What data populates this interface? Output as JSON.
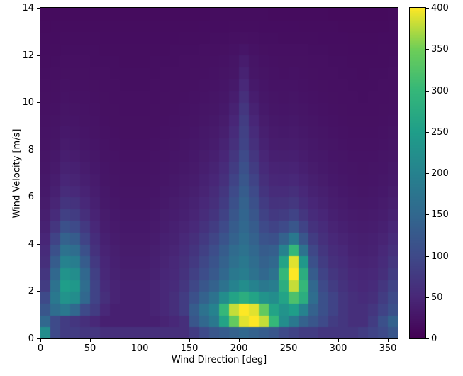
{
  "figure": {
    "background": "#ffffff",
    "plot_background": "#440154"
  },
  "chart_data": {
    "type": "heatmap",
    "title": "",
    "xlabel": "Wind Direction [deg]",
    "ylabel": "Wind Velocity [m/s]",
    "x_range": [
      0,
      360
    ],
    "y_range": [
      0,
      14
    ],
    "x_bin_size_deg": 10,
    "y_bin_size_ms": 0.5,
    "colormap": "viridis",
    "vmin": 0,
    "vmax": 400,
    "x_ticks": [
      0,
      50,
      100,
      150,
      200,
      250,
      300,
      350
    ],
    "y_ticks": [
      0,
      2,
      4,
      6,
      8,
      10,
      12,
      14
    ],
    "colorbar_ticks": [
      0,
      50,
      100,
      150,
      200,
      250,
      300,
      350,
      400
    ],
    "legend_position": "right-colorbar",
    "grid": false,
    "rows_order": "bottom-to-top",
    "viridis_stops": [
      [
        0.0,
        [
          68,
          1,
          84
        ]
      ],
      [
        0.125,
        [
          72,
          40,
          120
        ]
      ],
      [
        0.25,
        [
          62,
          74,
          137
        ]
      ],
      [
        0.375,
        [
          49,
          104,
          142
        ]
      ],
      [
        0.5,
        [
          38,
          130,
          142
        ]
      ],
      [
        0.625,
        [
          31,
          158,
          137
        ]
      ],
      [
        0.75,
        [
          53,
          183,
          121
        ]
      ],
      [
        0.875,
        [
          110,
          206,
          88
        ]
      ],
      [
        1.0,
        [
          253,
          231,
          37
        ]
      ]
    ],
    "values": [
      [
        220,
        100,
        80,
        80,
        70,
        70,
        60,
        60,
        60,
        60,
        60,
        60,
        60,
        60,
        60,
        80,
        100,
        120,
        130,
        140,
        150,
        140,
        130,
        120,
        100,
        90,
        80,
        80,
        70,
        70,
        70,
        70,
        80,
        90,
        100,
        120
      ],
      [
        150,
        100,
        80,
        70,
        60,
        50,
        40,
        40,
        40,
        40,
        40,
        40,
        45,
        50,
        60,
        120,
        150,
        180,
        260,
        340,
        390,
        400,
        380,
        300,
        220,
        180,
        140,
        120,
        100,
        80,
        70,
        60,
        60,
        80,
        110,
        140
      ],
      [
        120,
        160,
        180,
        150,
        100,
        80,
        50,
        40,
        40,
        40,
        40,
        45,
        50,
        60,
        80,
        130,
        170,
        200,
        300,
        380,
        400,
        390,
        340,
        260,
        230,
        250,
        200,
        140,
        110,
        90,
        70,
        60,
        60,
        70,
        90,
        110
      ],
      [
        100,
        180,
        230,
        220,
        150,
        90,
        60,
        45,
        40,
        40,
        40,
        45,
        50,
        60,
        80,
        110,
        140,
        170,
        220,
        260,
        280,
        260,
        230,
        220,
        260,
        320,
        280,
        160,
        110,
        90,
        70,
        60,
        55,
        60,
        80,
        100
      ],
      [
        80,
        170,
        250,
        240,
        160,
        90,
        55,
        45,
        40,
        40,
        40,
        45,
        50,
        55,
        70,
        95,
        120,
        140,
        170,
        200,
        220,
        200,
        180,
        190,
        280,
        380,
        300,
        150,
        100,
        80,
        65,
        55,
        50,
        55,
        70,
        90
      ],
      [
        70,
        150,
        230,
        220,
        150,
        85,
        50,
        42,
        38,
        38,
        38,
        42,
        48,
        52,
        65,
        85,
        105,
        125,
        150,
        180,
        190,
        170,
        150,
        170,
        300,
        400,
        280,
        130,
        90,
        70,
        60,
        50,
        48,
        50,
        60,
        80
      ],
      [
        60,
        130,
        200,
        190,
        130,
        75,
        48,
        40,
        36,
        36,
        36,
        40,
        45,
        50,
        60,
        75,
        95,
        115,
        140,
        165,
        180,
        160,
        140,
        150,
        260,
        390,
        240,
        110,
        80,
        62,
        55,
        46,
        44,
        46,
        55,
        70
      ],
      [
        55,
        110,
        170,
        160,
        110,
        65,
        44,
        38,
        34,
        34,
        34,
        38,
        42,
        46,
        55,
        68,
        85,
        105,
        130,
        155,
        170,
        150,
        130,
        135,
        200,
        300,
        170,
        95,
        70,
        56,
        50,
        42,
        40,
        42,
        50,
        62
      ],
      [
        48,
        90,
        140,
        130,
        90,
        58,
        40,
        35,
        32,
        32,
        32,
        35,
        40,
        42,
        50,
        60,
        75,
        92,
        115,
        140,
        160,
        140,
        115,
        110,
        140,
        180,
        120,
        80,
        62,
        50,
        45,
        40,
        38,
        40,
        45,
        55
      ],
      [
        42,
        70,
        110,
        100,
        75,
        50,
        36,
        32,
        30,
        30,
        30,
        32,
        36,
        40,
        45,
        52,
        65,
        80,
        100,
        130,
        150,
        130,
        100,
        90,
        100,
        120,
        90,
        65,
        55,
        45,
        40,
        36,
        35,
        36,
        40,
        48
      ],
      [
        38,
        55,
        85,
        80,
        60,
        44,
        34,
        30,
        28,
        28,
        28,
        30,
        34,
        36,
        40,
        46,
        56,
        68,
        88,
        120,
        145,
        120,
        88,
        75,
        80,
        90,
        70,
        55,
        48,
        40,
        36,
        33,
        32,
        33,
        36,
        42
      ],
      [
        34,
        46,
        68,
        64,
        50,
        40,
        31,
        28,
        26,
        26,
        26,
        28,
        31,
        34,
        37,
        42,
        50,
        60,
        78,
        110,
        140,
        110,
        78,
        64,
        66,
        72,
        58,
        48,
        42,
        36,
        33,
        30,
        29,
        30,
        33,
        38
      ],
      [
        31,
        40,
        56,
        52,
        44,
        36,
        29,
        26,
        25,
        25,
        25,
        26,
        29,
        31,
        34,
        38,
        45,
        54,
        70,
        100,
        130,
        100,
        68,
        56,
        56,
        60,
        50,
        42,
        38,
        33,
        30,
        28,
        27,
        28,
        30,
        34
      ],
      [
        29,
        36,
        48,
        45,
        39,
        33,
        27,
        25,
        24,
        24,
        24,
        25,
        27,
        29,
        32,
        35,
        41,
        48,
        62,
        90,
        120,
        90,
        60,
        49,
        48,
        50,
        44,
        38,
        34,
        30,
        28,
        26,
        25,
        26,
        28,
        31
      ],
      [
        27,
        32,
        42,
        40,
        35,
        30,
        26,
        24,
        23,
        23,
        23,
        24,
        26,
        27,
        29,
        32,
        37,
        43,
        55,
        80,
        110,
        80,
        53,
        44,
        43,
        44,
        39,
        34,
        31,
        28,
        26,
        25,
        24,
        25,
        26,
        29
      ],
      [
        25,
        29,
        37,
        35,
        31,
        28,
        24,
        23,
        22,
        22,
        22,
        23,
        24,
        26,
        27,
        30,
        34,
        39,
        48,
        70,
        100,
        70,
        47,
        39,
        38,
        39,
        35,
        31,
        29,
        26,
        25,
        23,
        23,
        23,
        25,
        27
      ],
      [
        24,
        27,
        33,
        31,
        28,
        26,
        23,
        22,
        21,
        21,
        21,
        22,
        23,
        24,
        26,
        28,
        31,
        35,
        43,
        62,
        90,
        62,
        42,
        35,
        34,
        35,
        32,
        29,
        27,
        25,
        23,
        22,
        22,
        22,
        23,
        25
      ],
      [
        23,
        25,
        30,
        28,
        26,
        24,
        22,
        21,
        20,
        20,
        20,
        21,
        22,
        23,
        24,
        26,
        29,
        32,
        38,
        55,
        85,
        55,
        38,
        32,
        31,
        32,
        29,
        27,
        25,
        23,
        22,
        21,
        21,
        21,
        22,
        24
      ],
      [
        22,
        24,
        27,
        26,
        24,
        23,
        21,
        20,
        20,
        20,
        20,
        20,
        21,
        22,
        23,
        24,
        27,
        29,
        34,
        48,
        80,
        48,
        34,
        29,
        28,
        29,
        27,
        25,
        23,
        22,
        21,
        20,
        20,
        20,
        21,
        22
      ],
      [
        21,
        22,
        25,
        24,
        23,
        22,
        20,
        20,
        19,
        19,
        19,
        20,
        20,
        21,
        22,
        23,
        25,
        27,
        31,
        42,
        70,
        42,
        31,
        27,
        26,
        27,
        25,
        23,
        22,
        21,
        20,
        19,
        19,
        19,
        20,
        21
      ],
      [
        20,
        21,
        23,
        22,
        22,
        21,
        20,
        19,
        19,
        19,
        19,
        19,
        20,
        20,
        21,
        22,
        23,
        25,
        28,
        36,
        60,
        36,
        28,
        25,
        24,
        25,
        23,
        22,
        21,
        20,
        19,
        19,
        18,
        19,
        19,
        20
      ],
      [
        19,
        20,
        22,
        21,
        21,
        20,
        19,
        19,
        18,
        18,
        18,
        19,
        19,
        20,
        20,
        21,
        22,
        23,
        26,
        31,
        50,
        31,
        26,
        23,
        23,
        23,
        22,
        21,
        20,
        19,
        19,
        18,
        18,
        18,
        19,
        19
      ],
      [
        18,
        19,
        20,
        20,
        20,
        19,
        19,
        18,
        18,
        18,
        18,
        18,
        19,
        19,
        19,
        20,
        21,
        22,
        24,
        27,
        42,
        27,
        24,
        22,
        21,
        22,
        21,
        20,
        19,
        19,
        18,
        18,
        17,
        18,
        18,
        19
      ],
      [
        17,
        18,
        19,
        19,
        19,
        18,
        18,
        18,
        17,
        17,
        17,
        18,
        18,
        18,
        19,
        19,
        20,
        21,
        22,
        25,
        35,
        25,
        22,
        21,
        20,
        20,
        20,
        19,
        19,
        18,
        18,
        17,
        17,
        17,
        17,
        18
      ],
      [
        16,
        17,
        18,
        18,
        18,
        18,
        17,
        17,
        17,
        17,
        17,
        17,
        17,
        18,
        18,
        18,
        19,
        19,
        20,
        22,
        26,
        22,
        20,
        19,
        19,
        19,
        19,
        18,
        18,
        17,
        17,
        16,
        16,
        16,
        17,
        17
      ],
      [
        15,
        16,
        17,
        17,
        17,
        17,
        16,
        16,
        16,
        16,
        16,
        16,
        16,
        16,
        17,
        17,
        17,
        18,
        18,
        19,
        20,
        19,
        18,
        18,
        17,
        17,
        17,
        17,
        16,
        16,
        16,
        15,
        15,
        15,
        16,
        16
      ],
      [
        14,
        15,
        15,
        15,
        15,
        15,
        15,
        15,
        15,
        15,
        15,
        15,
        15,
        15,
        15,
        15,
        16,
        16,
        16,
        17,
        17,
        17,
        16,
        16,
        16,
        16,
        15,
        15,
        15,
        15,
        14,
        14,
        14,
        14,
        14,
        15
      ],
      [
        13,
        14,
        14,
        14,
        14,
        14,
        14,
        14,
        14,
        14,
        14,
        14,
        14,
        14,
        14,
        14,
        14,
        15,
        15,
        15,
        15,
        15,
        15,
        14,
        14,
        14,
        14,
        14,
        14,
        13,
        13,
        13,
        13,
        13,
        13,
        14
      ]
    ]
  }
}
